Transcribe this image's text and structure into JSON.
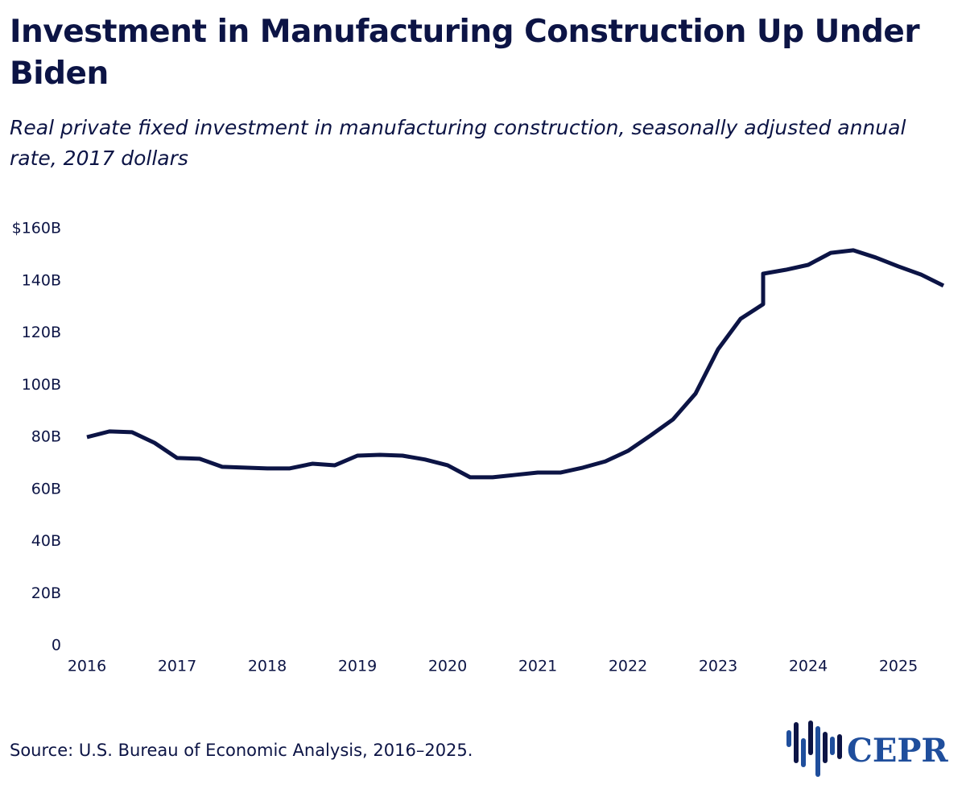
{
  "chart_data": {
    "type": "line",
    "title": "Investment in Manufacturing Construction Up Under Biden",
    "subtitle": "Real private fixed investment in manufacturing construction, seasonally adjusted annual rate, 2017 dollars",
    "source": "Source: U.S. Bureau of Economic Analysis, 2016–2025.",
    "logo": "CEPR",
    "color": "#0c1445",
    "x": [
      2016,
      2016.25,
      2016.5,
      2016.75,
      2017,
      2017.25,
      2017.5,
      2017.75,
      2018,
      2018.25,
      2018.5,
      2018.75,
      2019,
      2019.25,
      2019.5,
      2019.75,
      2020,
      2020.25,
      2020.5,
      2020.75,
      2021,
      2021.25,
      2021.5,
      2021.75,
      2022,
      2022.25,
      2022.5,
      2022.75,
      2023,
      2023.25,
      2023.5,
      2023.5,
      2023.75,
      2024,
      2024.25,
      2024.5,
      2024.75,
      2025,
      2025.25,
      2025.5
    ],
    "values": [
      80,
      82.2,
      81.9,
      77.8,
      72,
      71.7,
      68.6,
      68.3,
      68,
      68,
      69.8,
      69.2,
      72.9,
      73.2,
      72.9,
      71.4,
      69.2,
      64.6,
      64.6,
      65.5,
      66.4,
      66.4,
      68.3,
      70.7,
      74.7,
      80.6,
      86.8,
      96.7,
      113.7,
      125.4,
      131,
      142.7,
      144.2,
      146.1,
      150.7,
      151.7,
      148.9,
      145.5,
      142.4,
      138.1
    ],
    "xlim": [
      2016,
      2025.5
    ],
    "xticks": [
      2016,
      2017,
      2018,
      2019,
      2020,
      2021,
      2022,
      2023,
      2024,
      2025
    ],
    "ylim": [
      0,
      160
    ],
    "yticks": [
      0,
      {
        "value": 20,
        "label": "20B"
      },
      {
        "value": 40,
        "label": "40B"
      },
      {
        "value": 60,
        "label": "60B"
      },
      {
        "value": 80,
        "label": "80B"
      },
      {
        "value": 100,
        "label": "100B"
      },
      {
        "value": 120,
        "label": "120B"
      },
      {
        "value": 140,
        "label": "140B"
      },
      {
        "value": 160,
        "label": "$160B"
      }
    ],
    "grid": false
  }
}
